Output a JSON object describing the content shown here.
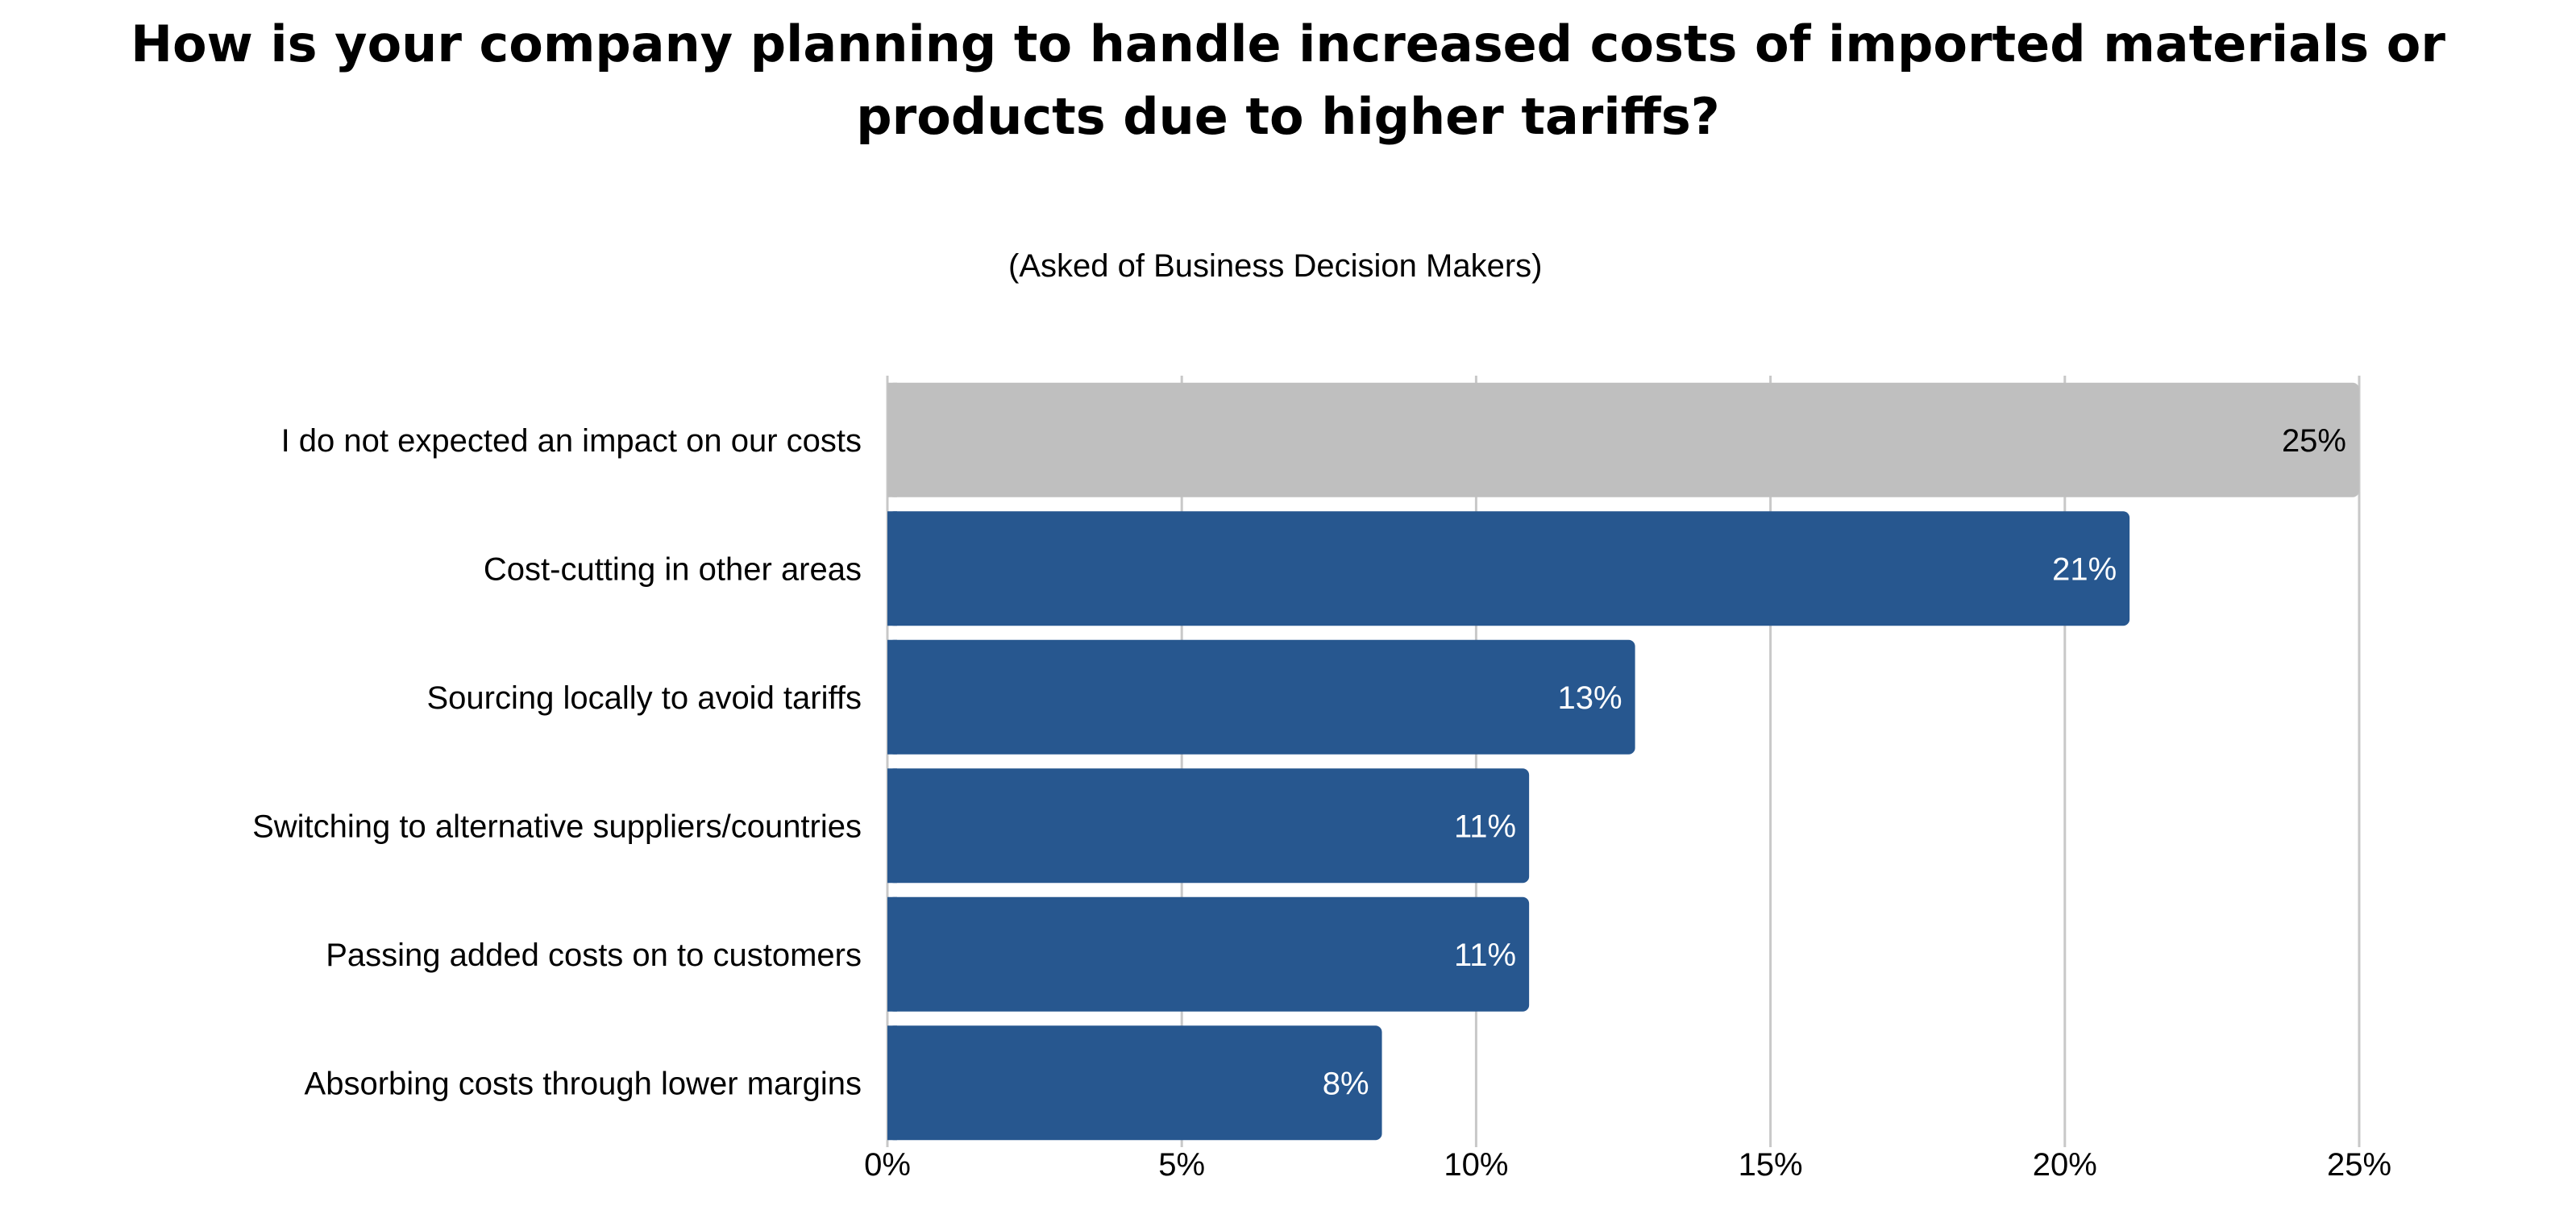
{
  "chart_data": {
    "type": "bar",
    "orientation": "horizontal",
    "title": "How is your company planning to handle increased costs of imported materials or products due to higher tariffs?",
    "subtitle": "(Asked of Business Decision Makers)",
    "categories": [
      "I do not expected an impact on our costs",
      "Cost-cutting in other areas",
      "Sourcing locally to avoid tariffs",
      "Switching to alternative suppliers/countries",
      "Passing added costs on to customers",
      "Absorbing costs through lower margins"
    ],
    "values": [
      25,
      21.1,
      12.7,
      10.9,
      10.9,
      8.4
    ],
    "data_labels": [
      "25%",
      "21%",
      "13%",
      "11%",
      "11%",
      "8%"
    ],
    "xlim": [
      0,
      25
    ],
    "x_ticks": [
      0,
      5,
      10,
      15,
      20,
      25
    ],
    "x_tick_labels": [
      "0%",
      "5%",
      "10%",
      "15%",
      "20%",
      "25%"
    ],
    "grid": "vertical",
    "legend": "none",
    "colors": {
      "highlight": "#bfbfbf",
      "bar": "#27578f",
      "grid": "#c8c8c8",
      "label_on_highlight": "#000000",
      "label_on_bar": "#ffffff"
    }
  }
}
